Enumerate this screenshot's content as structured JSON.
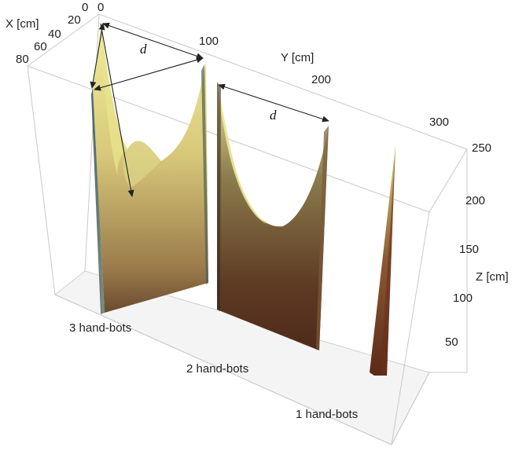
{
  "axes": {
    "x_label": "X [cm]",
    "y_label": "Y [cm]",
    "z_label": "Z [cm]",
    "x_ticks": [
      "0",
      "20",
      "40",
      "60",
      "80"
    ],
    "y_ticks": [
      "0",
      "100",
      "200",
      "300"
    ],
    "z_ticks": [
      "50",
      "100",
      "150",
      "200",
      "250"
    ]
  },
  "annotations": {
    "distance_1": "d",
    "distance_2": "d"
  },
  "groups": [
    {
      "label": "3 hand-bots"
    },
    {
      "label": "2 hand-bots"
    },
    {
      "label": "1 hand-bots"
    }
  ],
  "colors": {
    "surface_top": "#eeea96",
    "surface_mid": "#c9b466",
    "surface_dark": "#6b3a20",
    "box": "#c9c9c9"
  }
}
